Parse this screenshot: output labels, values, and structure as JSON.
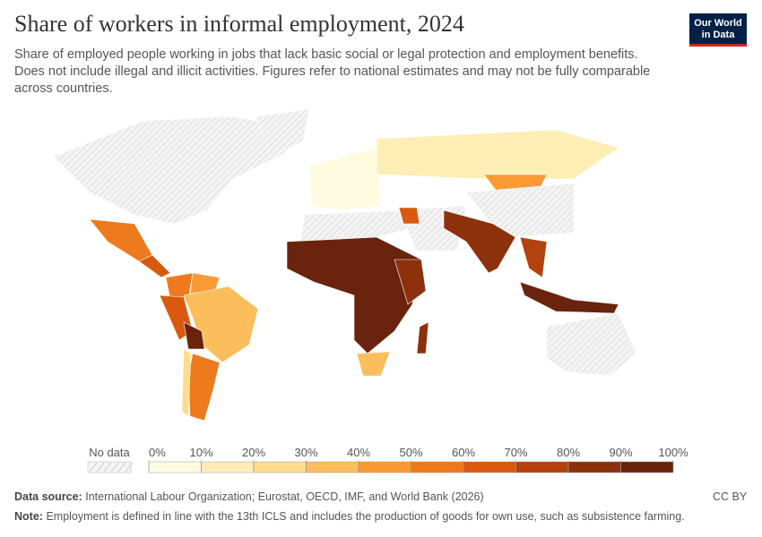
{
  "header": {
    "title": "Share of workers in informal employment, 2024",
    "subtitle": "Share of employed people working in jobs that lack basic social or legal protection and employment benefits. Does not include illegal and illicit activities. Figures refer to national estimates and may not be fully comparable across countries.",
    "logo": [
      "Our World",
      "in Data"
    ]
  },
  "legend": {
    "no_data_label": "No data",
    "ticks": [
      {
        "value": 0,
        "label": "0%"
      },
      {
        "value": 10,
        "label": "10%"
      },
      {
        "value": 20,
        "label": "20%"
      },
      {
        "value": 30,
        "label": "30%"
      },
      {
        "value": 40,
        "label": "40%"
      },
      {
        "value": 50,
        "label": "50%"
      },
      {
        "value": 60,
        "label": "60%"
      },
      {
        "value": 70,
        "label": "70%"
      },
      {
        "value": 80,
        "label": "80%"
      },
      {
        "value": 90,
        "label": "90%"
      },
      {
        "value": 100,
        "label": "100%"
      }
    ],
    "colors": [
      "#fffbe0",
      "#feeeb5",
      "#fddc8c",
      "#fcbd5c",
      "#f99a34",
      "#ee7a1e",
      "#d95a0f",
      "#b3420c",
      "#8d300c",
      "#6a230c"
    ]
  },
  "footer": {
    "source_label": "Data source:",
    "source": "International Labour Organization; Eurostat, OECD, IMF, and World Bank (2026)",
    "license": "CC BY",
    "note_label": "Note:",
    "note": "Employment is defined in line with the 13th ICLS and includes the production of goods for own use, such as subsistence farming."
  }
}
